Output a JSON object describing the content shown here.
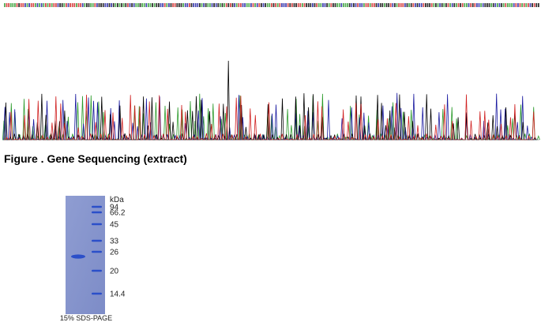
{
  "figure_caption": "Figure . Gene Sequencing (extract)",
  "gel": {
    "unit": "kDa",
    "markers": [
      "94",
      "66.2",
      "45",
      "33",
      "26",
      "20",
      "14.4"
    ],
    "caption": "15% SDS-PAGE"
  }
}
